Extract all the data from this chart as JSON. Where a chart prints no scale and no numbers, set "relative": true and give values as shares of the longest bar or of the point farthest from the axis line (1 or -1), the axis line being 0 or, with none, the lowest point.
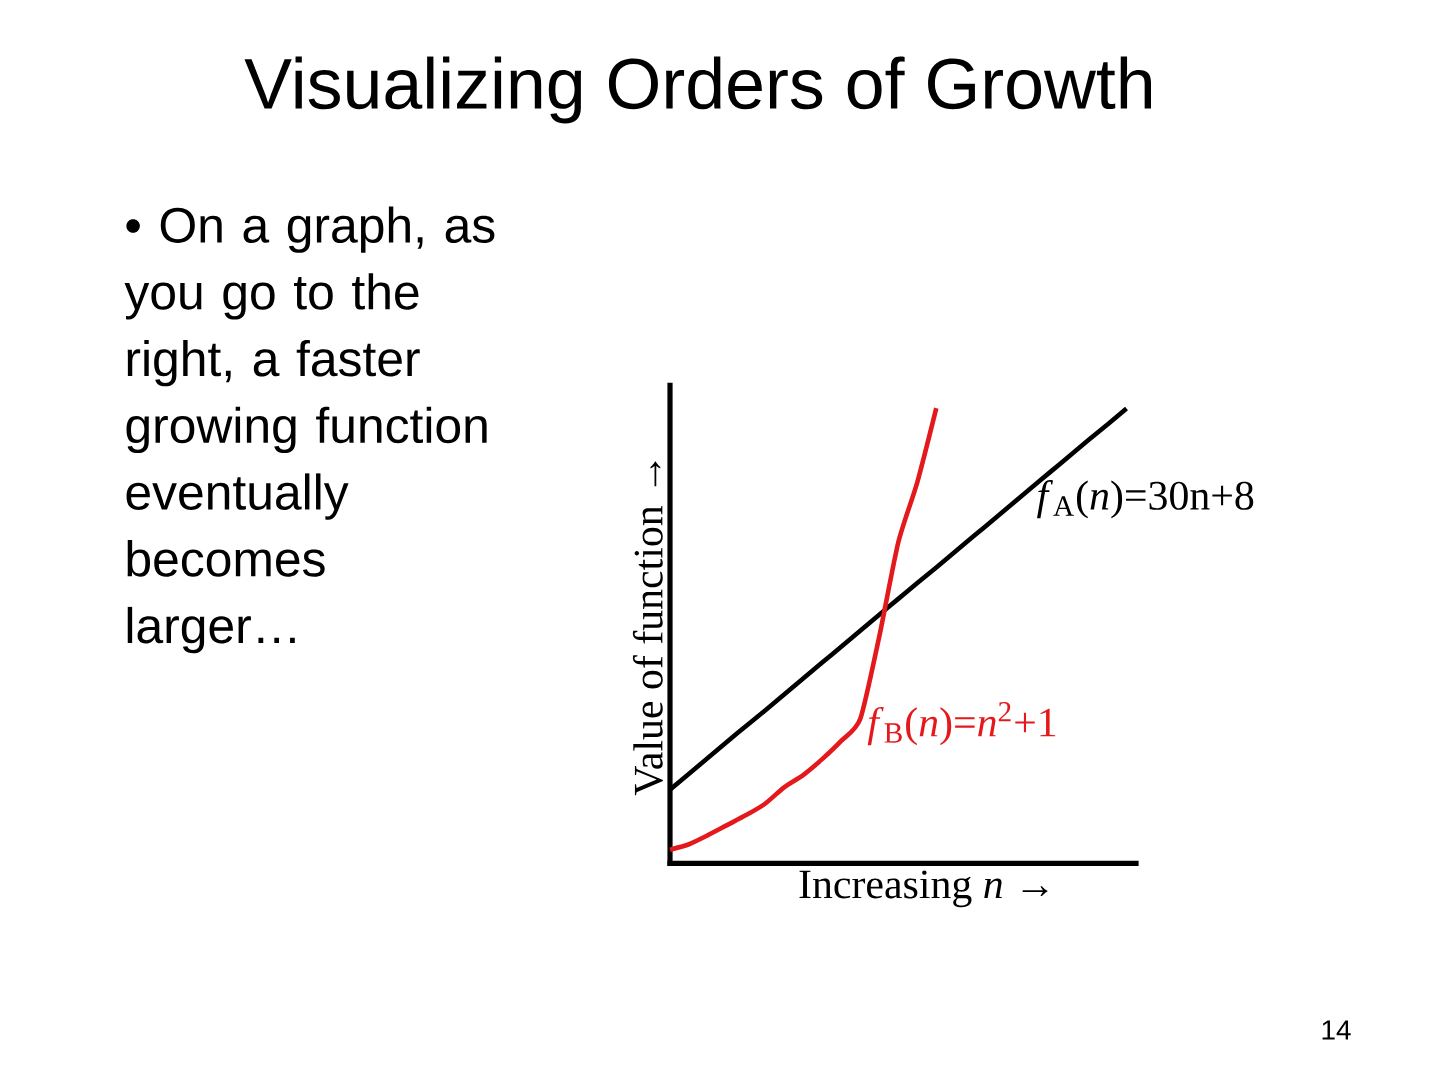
{
  "chart_data": {
    "type": "line",
    "title": "Visualizing Orders of Growth",
    "xlabel": "Increasing *n* →",
    "ylabel": "Value of function →",
    "annotations": [
      "• On a graph, as you go to the right, a faster growing function eventually becomes larger…",
      "14"
    ],
    "categories": [
      null,
      null,
      null,
      null,
      null,
      null,
      null,
      null,
      null,
      null,
      null,
      null,
      null,
      null,
      null,
      null,
      null,
      null,
      null,
      null,
      null,
      null,
      null,
      null,
      null
    ],
    "relative": true,
    "series": [
      {
        "name": "*f*$_{A}$(*n*)=30n+8",
        "color": "#000000",
        "values": [
          0.162,
          0.197,
          0.232,
          0.267,
          0.302,
          0.336,
          0.371,
          0.406,
          0.441,
          0.476,
          0.511,
          0.546,
          0.581,
          0.616,
          0.65,
          0.685,
          0.72,
          0.755,
          0.79,
          0.825,
          0.86,
          0.895,
          0.93,
          0.964,
          0.999
        ]
      },
      {
        "name": "*f*$_{B}$(*n*)=*n*$^{2}$+1",
        "color": "#e3191c",
        "values": [
          0.03,
          0.042,
          0.062,
          0.084,
          0.106,
          0.131,
          0.167,
          0.194,
          0.229,
          0.269,
          0.317,
          0.498,
          0.705,
          0.837,
          1.0,
          null,
          null,
          null,
          null,
          null,
          null,
          null,
          null,
          null,
          null
        ]
      }
    ]
  }
}
